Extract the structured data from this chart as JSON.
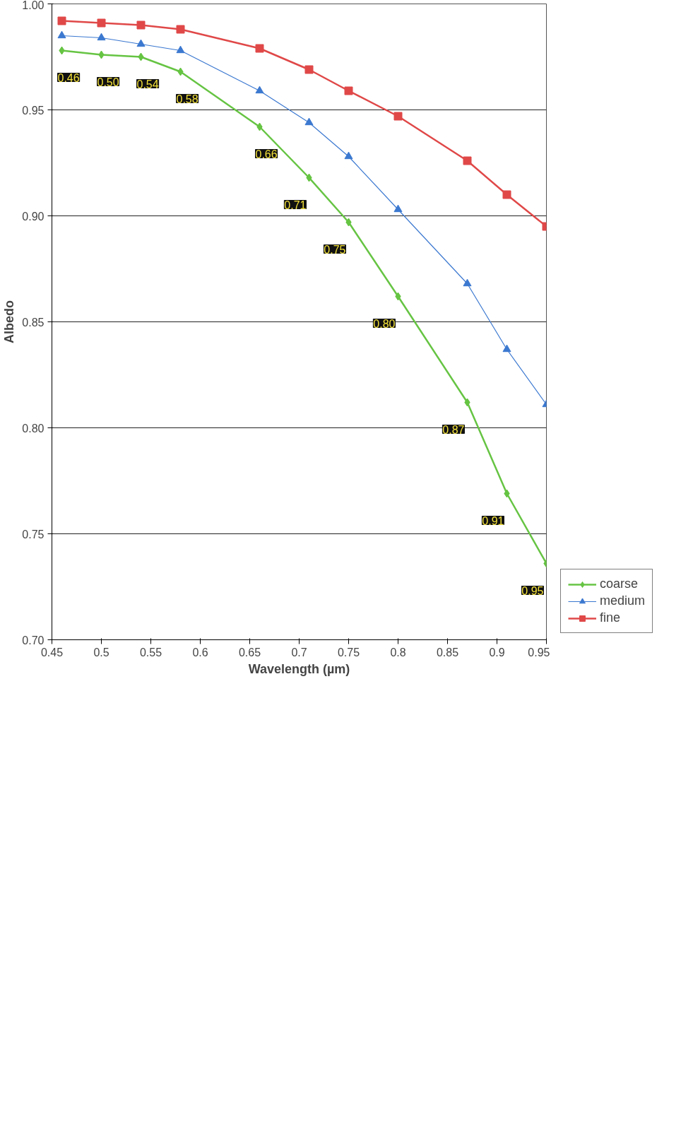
{
  "chart_data": {
    "type": "line",
    "xlabel": "Wavelength (µm)",
    "ylabel": "Albedo",
    "x": [
      0.46,
      0.5,
      0.54,
      0.58,
      0.66,
      0.71,
      0.75,
      0.8,
      0.87,
      0.91,
      0.95
    ],
    "series": [
      {
        "name": "coarse",
        "color": "#66c443",
        "marker": "diamond",
        "values": [
          0.978,
          0.976,
          0.975,
          0.968,
          0.942,
          0.918,
          0.897,
          0.862,
          0.812,
          0.769,
          0.736
        ]
      },
      {
        "name": "medium",
        "color": "#3b78d0",
        "marker": "triangle",
        "values": [
          0.985,
          0.984,
          0.981,
          0.978,
          0.959,
          0.944,
          0.928,
          0.903,
          0.868,
          0.837,
          0.811
        ]
      },
      {
        "name": "fine",
        "color": "#e04848",
        "marker": "square",
        "values": [
          0.992,
          0.991,
          0.99,
          0.988,
          0.979,
          0.969,
          0.959,
          0.947,
          0.926,
          0.91,
          0.895
        ]
      }
    ],
    "xlim": [
      0.45,
      0.95
    ],
    "xticks": [
      0.45,
      0.5,
      0.55,
      0.6,
      0.65,
      0.7,
      0.75,
      0.8,
      0.85,
      0.9,
      0.95
    ],
    "ylim": [
      0.7,
      1.0
    ],
    "yticks": [
      {
        "value": 0.7,
        "label": "0.70"
      },
      0.75,
      {
        "value": 0.8,
        "label": "0.80"
      },
      0.85,
      {
        "value": 0.9,
        "label": "0.90"
      },
      0.95,
      {
        "value": 1.0,
        "label": "1.00"
      }
    ],
    "grid": "y",
    "legend": "right",
    "line_style": "solid",
    "annotations": [
      {
        "text": "0.46",
        "x": 0.46,
        "y": 0.978
      },
      {
        "text": "0.50",
        "x": 0.5,
        "y": 0.976
      },
      {
        "text": "0.54",
        "x": 0.54,
        "y": 0.975
      },
      {
        "text": "0.58",
        "x": 0.58,
        "y": 0.968
      },
      {
        "text": "0.66",
        "x": 0.66,
        "y": 0.942
      },
      {
        "text": "0.71",
        "x": 0.71,
        "y": 0.918
      },
      {
        "text": "0.75",
        "x": 0.75,
        "y": 0.897
      },
      {
        "text": "0.80",
        "x": 0.8,
        "y": 0.862
      },
      {
        "text": "0.87",
        "x": 0.87,
        "y": 0.812
      },
      {
        "text": "0.91",
        "x": 0.91,
        "y": 0.769
      },
      {
        "text": "0.95",
        "x": 0.95,
        "y": 0.736
      }
    ]
  }
}
